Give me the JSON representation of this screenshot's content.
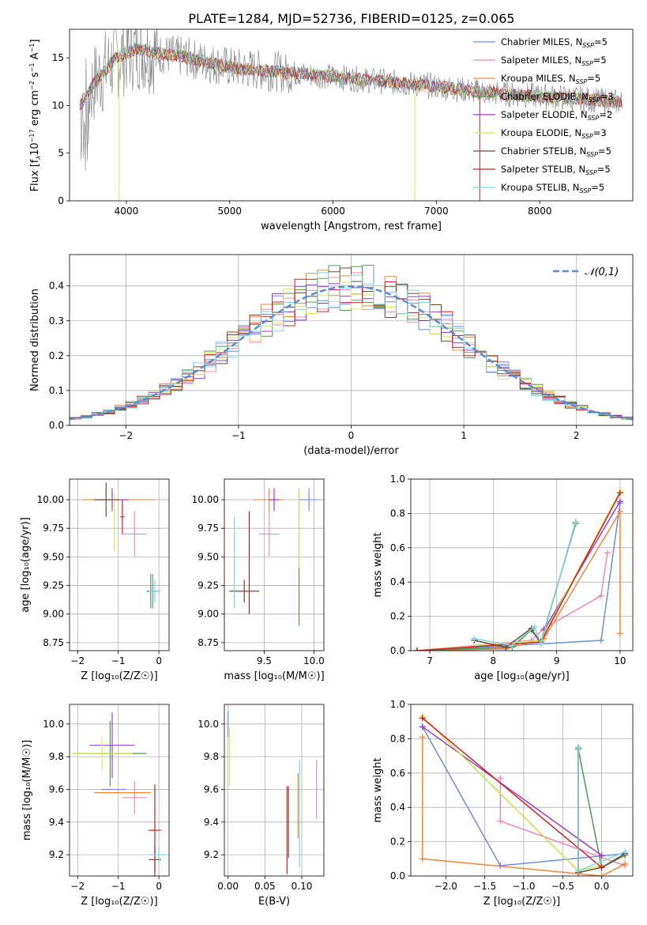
{
  "figure": {
    "title": "PLATE=1284, MJD=52736, FIBERID=0125, z=0.065"
  },
  "legend_entries": [
    {
      "base": "Chabrier MILES, N",
      "sub": "SSP",
      "tail": "=5",
      "color": "#6b8fd6"
    },
    {
      "base": "Salpeter MILES, N",
      "sub": "SSP",
      "tail": "=5",
      "color": "#e88ac0"
    },
    {
      "base": "Kroupa MILES, N",
      "sub": "SSP",
      "tail": "=5",
      "color": "#e88a3c"
    },
    {
      "base": "Chabrier ELODIE, N",
      "sub": "SSP",
      "tail": "=3",
      "color": "#4e9a4e"
    },
    {
      "base": "Salpeter ELODIE, N",
      "sub": "SSP",
      "tail": "=2",
      "color": "#9a3dc8"
    },
    {
      "base": "Kroupa ELODIE, N",
      "sub": "SSP",
      "tail": "=3",
      "color": "#d6e85a"
    },
    {
      "base": "Chabrier STELIB, N",
      "sub": "SSP",
      "tail": "=5",
      "color": "#6b4a3a"
    },
    {
      "base": "Salpeter STELIB, N",
      "sub": "SSP",
      "tail": "=5",
      "color": "#cc2222"
    },
    {
      "base": "Kroupa STELIB, N",
      "sub": "SSP",
      "tail": "=5",
      "color": "#7fd6e0"
    }
  ],
  "data_color": "#808080",
  "chart_data": [
    {
      "id": "spectrum",
      "type": "line",
      "xlabel": "wavelength [Angstrom, rest frame]",
      "ylabel_parts": [
        "Flux [f",
        "λ",
        "10",
        "−17",
        " erg cm",
        "−2",
        " s",
        "−1",
        " A",
        "−1",
        "]"
      ],
      "xlim": [
        3450,
        8900
      ],
      "ylim": [
        0,
        18
      ],
      "xticks": [
        4000,
        5000,
        6000,
        7000,
        8000
      ],
      "yticks": [
        0,
        5,
        10,
        15
      ],
      "grid": false,
      "legend_position": "top-right",
      "continuum": {
        "x": [
          3550,
          3700,
          3900,
          4100,
          4300,
          4600,
          5000,
          5500,
          6000,
          6500,
          7000,
          7500,
          8000,
          8500,
          8800
        ],
        "y": [
          10.0,
          12.5,
          15.0,
          16.0,
          15.5,
          15.0,
          14.0,
          13.5,
          13.0,
          12.5,
          12.0,
          11.3,
          11.0,
          10.6,
          10.3
        ]
      }
    },
    {
      "id": "residuals",
      "type": "step",
      "xlabel": "(data-model)/error",
      "ylabel": "Normed distribution",
      "xlim": [
        -2.5,
        2.5
      ],
      "ylim": [
        0,
        0.49
      ],
      "xticks": [
        -2,
        -1,
        0,
        1,
        2
      ],
      "yticks": [
        0.0,
        0.1,
        0.2,
        0.3,
        0.4
      ],
      "grid": true,
      "legend": "𝒩(0,1)",
      "legend_position": "top-right",
      "gaussian_sigma": 1.0
    },
    {
      "id": "age_vs_Z",
      "type": "errorbar",
      "xlabel": "Z [log₁₀(Z/Z☉)]",
      "ylabel": "age  [log₁₀(age/yr)]",
      "xlim": [
        -2.2,
        0.25
      ],
      "ylim": [
        8.68,
        10.18
      ],
      "xticks": [
        -2,
        -1,
        0
      ],
      "yticks": [
        8.75,
        9.0,
        9.25,
        9.5,
        9.75,
        10.0
      ],
      "grid": true,
      "points": [
        {
          "series": 0,
          "x": -0.15,
          "y": 9.2,
          "xerr": 0.15,
          "yerr": 0.15
        },
        {
          "series": 1,
          "x": -0.6,
          "y": 9.7,
          "xerr": 0.3,
          "yerr": 0.2
        },
        {
          "series": 2,
          "x": -1.0,
          "y": 10.0,
          "xerr": 0.9,
          "yerr": 0.0
        },
        {
          "series": 3,
          "x": -1.2,
          "y": 10.0,
          "xerr": 0.4,
          "yerr": 0.0
        },
        {
          "series": 3,
          "x": -0.2,
          "y": 9.2,
          "xerr": 0.1,
          "yerr": 0.15
        },
        {
          "series": 4,
          "x": -1.15,
          "y": 10.0,
          "xerr": 0.4,
          "yerr": 0.1
        },
        {
          "series": 5,
          "x": -1.1,
          "y": 9.8,
          "xerr": 0.0,
          "yerr": 0.25
        },
        {
          "series": 6,
          "x": -1.3,
          "y": 10.0,
          "xerr": 0.3,
          "yerr": 0.15
        },
        {
          "series": 7,
          "x": -0.9,
          "y": 9.85,
          "xerr": 0.05,
          "yerr": 0.15
        },
        {
          "series": 8,
          "x": -0.1,
          "y": 9.2,
          "xerr": 0.15,
          "yerr": 0.1
        }
      ]
    },
    {
      "id": "age_vs_mass",
      "type": "errorbar",
      "xlabel": "mass [log₁₀(M/M☉)]",
      "xlim": [
        9.1,
        10.1
      ],
      "ylim": [
        8.68,
        10.18
      ],
      "xticks": [
        9.5,
        10.0
      ],
      "yticks": [
        8.75,
        9.0,
        9.25,
        9.5,
        9.75,
        10.0
      ],
      "grid": true,
      "points": [
        {
          "series": 0,
          "x": 9.95,
          "y": 10.0,
          "xerr": 0.1,
          "yerr": 0.1
        },
        {
          "series": 1,
          "x": 9.55,
          "y": 9.7,
          "xerr": 0.1,
          "yerr": 0.2
        },
        {
          "series": 2,
          "x": 9.55,
          "y": 10.0,
          "xerr": 0.15,
          "yerr": 0.1
        },
        {
          "series": 3,
          "x": 9.85,
          "y": 9.5,
          "xerr": 0.0,
          "yerr": 0.6
        },
        {
          "series": 4,
          "x": 9.6,
          "y": 10.0,
          "xerr": 0.05,
          "yerr": 0.1
        },
        {
          "series": 5,
          "x": 9.85,
          "y": 9.75,
          "xerr": 0.0,
          "yerr": 0.35
        },
        {
          "series": 6,
          "x": 9.3,
          "y": 9.2,
          "xerr": 0.15,
          "yerr": 0.1
        },
        {
          "series": 7,
          "x": 9.35,
          "y": 9.45,
          "xerr": 0.0,
          "yerr": 0.45
        },
        {
          "series": 8,
          "x": 9.2,
          "y": 9.45,
          "xerr": 0.0,
          "yerr": 0.4
        }
      ]
    },
    {
      "id": "weights_vs_age",
      "type": "line",
      "xlabel": "age  [log₁₀(age/yr)]",
      "ylabel": "mass weight",
      "xlim": [
        6.7,
        10.2
      ],
      "ylim": [
        0,
        1.0
      ],
      "xticks": [
        7,
        8,
        9,
        10
      ],
      "yticks": [
        0.0,
        0.2,
        0.4,
        0.6,
        0.8,
        1.0
      ],
      "grid": true,
      "series": [
        {
          "series": 0,
          "x": [
            6.8,
            8.3,
            9.7,
            10.0
          ],
          "y": [
            0.0,
            0.03,
            0.06,
            0.86
          ]
        },
        {
          "series": 1,
          "x": [
            6.8,
            8.6,
            8.8,
            9.7,
            9.8
          ],
          "y": [
            0.0,
            0.06,
            0.13,
            0.32,
            0.57
          ]
        },
        {
          "series": 2,
          "x": [
            6.8,
            8.2,
            8.8,
            10.0,
            10.0
          ],
          "y": [
            0.0,
            0.01,
            0.07,
            0.81,
            0.1
          ]
        },
        {
          "series": 3,
          "x": [
            6.8,
            8.3,
            8.6,
            8.75,
            9.3
          ],
          "y": [
            0.0,
            0.02,
            0.12,
            0.05,
            0.74
          ]
        },
        {
          "series": 4,
          "x": [
            8.8,
            10.0
          ],
          "y": [
            0.12,
            0.87
          ]
        },
        {
          "series": 5,
          "x": [
            6.8,
            8.75,
            10.0
          ],
          "y": [
            0.0,
            0.06,
            0.93
          ]
        },
        {
          "series": 6,
          "x": [
            7.7,
            8.2,
            8.6,
            8.75,
            9.3
          ],
          "y": [
            0.06,
            0.02,
            0.13,
            0.04,
            0.75
          ]
        },
        {
          "series": 7,
          "x": [
            6.8,
            8.75,
            10.0
          ],
          "y": [
            0.0,
            0.05,
            0.92
          ]
        },
        {
          "series": 8,
          "x": [
            7.7,
            8.3,
            8.65,
            8.75,
            9.3
          ],
          "y": [
            0.07,
            0.03,
            0.14,
            0.04,
            0.75
          ]
        }
      ]
    },
    {
      "id": "mass_vs_Z",
      "type": "errorbar",
      "xlabel": "Z [log₁₀(Z/Z☉)]",
      "ylabel": "mass [log₁₀(M/M☉)]",
      "xlim": [
        -2.2,
        0.25
      ],
      "ylim": [
        9.07,
        10.12
      ],
      "xticks": [
        -2,
        -1,
        0
      ],
      "yticks": [
        9.2,
        9.4,
        9.6,
        9.8,
        10.0
      ],
      "grid": true,
      "points": [
        {
          "series": 0,
          "x": -1.1,
          "y": 9.6,
          "xerr": 0.3,
          "yerr": 0.0
        },
        {
          "series": 1,
          "x": -0.6,
          "y": 9.55,
          "xerr": 0.3,
          "yerr": 0.1
        },
        {
          "series": 2,
          "x": -0.9,
          "y": 9.58,
          "xerr": 0.7,
          "yerr": 0.0
        },
        {
          "series": 3,
          "x": -1.2,
          "y": 9.82,
          "xerr": 0.9,
          "yerr": 0.2
        },
        {
          "series": 4,
          "x": -1.15,
          "y": 9.87,
          "xerr": 0.55,
          "yerr": 0.2
        },
        {
          "series": 5,
          "x": -1.4,
          "y": 9.82,
          "xerr": 0.75,
          "yerr": 0.1
        },
        {
          "series": 6,
          "x": -0.1,
          "y": 9.17,
          "xerr": 0.15,
          "yerr": 0.08
        },
        {
          "series": 7,
          "x": -0.1,
          "y": 9.35,
          "xerr": 0.15,
          "yerr": 0.28
        },
        {
          "series": 8,
          "x": 0.0,
          "y": 9.2,
          "xerr": 0.2,
          "yerr": 0.05
        }
      ]
    },
    {
      "id": "mass_vs_EBV",
      "type": "errorbar",
      "xlabel": "E(B-V)",
      "xlim": [
        -0.005,
        0.13
      ],
      "ylim": [
        9.07,
        10.12
      ],
      "xticks": [
        0.0,
        0.05,
        0.1
      ],
      "yticks": [
        9.2,
        9.4,
        9.6,
        9.8,
        10.0
      ],
      "grid": true,
      "points": [
        {
          "series": 0,
          "x": 0.0,
          "y": 10.0,
          "xerr": 0.0,
          "yerr": 0.08
        },
        {
          "series": 1,
          "x": 0.12,
          "y": 9.6,
          "xerr": 0.0,
          "yerr": 0.18
        },
        {
          "series": 2,
          "x": 0.095,
          "y": 9.5,
          "xerr": 0.0,
          "yerr": 0.2
        },
        {
          "series": 5,
          "x": 0.002,
          "y": 9.8,
          "xerr": 0.0,
          "yerr": 0.18
        },
        {
          "series": 6,
          "x": 0.082,
          "y": 9.4,
          "xerr": 0.0,
          "yerr": 0.22
        },
        {
          "series": 7,
          "x": 0.08,
          "y": 9.35,
          "xerr": 0.0,
          "yerr": 0.27
        },
        {
          "series": 8,
          "x": 0.097,
          "y": 9.45,
          "xerr": 0.0,
          "yerr": 0.33
        }
      ]
    },
    {
      "id": "weights_vs_Z",
      "type": "line",
      "xlabel": "Z [log₁₀(Z/Z☉)]",
      "ylabel": "mass weight",
      "xlim": [
        -2.45,
        0.4
      ],
      "ylim": [
        0,
        1.0
      ],
      "xticks": [
        -2.0,
        -1.5,
        -1.0,
        -0.5,
        0.0
      ],
      "yticks": [
        0.0,
        0.2,
        0.4,
        0.6,
        0.8,
        1.0
      ],
      "grid": true,
      "series": [
        {
          "series": 0,
          "x": [
            -2.3,
            -1.3,
            0.3
          ],
          "y": [
            0.87,
            0.06,
            0.13
          ]
        },
        {
          "series": 1,
          "x": [
            -1.3,
            -1.3,
            0.3
          ],
          "y": [
            0.57,
            0.32,
            0.06
          ]
        },
        {
          "series": 2,
          "x": [
            -2.3,
            -2.3,
            0.0,
            0.3
          ],
          "y": [
            0.81,
            0.1,
            0.0,
            0.07
          ]
        },
        {
          "series": 3,
          "x": [
            -2.3,
            -0.3,
            -0.3,
            0.0,
            0.3
          ],
          "y": [
            0.93,
            0.03,
            0.74,
            0.05,
            0.12
          ]
        },
        {
          "series": 4,
          "x": [
            -2.3,
            0.0
          ],
          "y": [
            0.87,
            0.12
          ]
        },
        {
          "series": 5,
          "x": [
            -2.3,
            -0.3,
            0.0
          ],
          "y": [
            0.93,
            0.03,
            0.06
          ]
        },
        {
          "series": 6,
          "x": [
            -0.3,
            -0.3,
            0.0,
            0.3
          ],
          "y": [
            0.75,
            0.02,
            0.05,
            0.13
          ]
        },
        {
          "series": 7,
          "x": [
            -2.3,
            0.0
          ],
          "y": [
            0.92,
            0.05
          ]
        },
        {
          "series": 8,
          "x": [
            -0.3,
            -0.3,
            0.3
          ],
          "y": [
            0.75,
            0.03,
            0.14
          ]
        }
      ]
    }
  ]
}
